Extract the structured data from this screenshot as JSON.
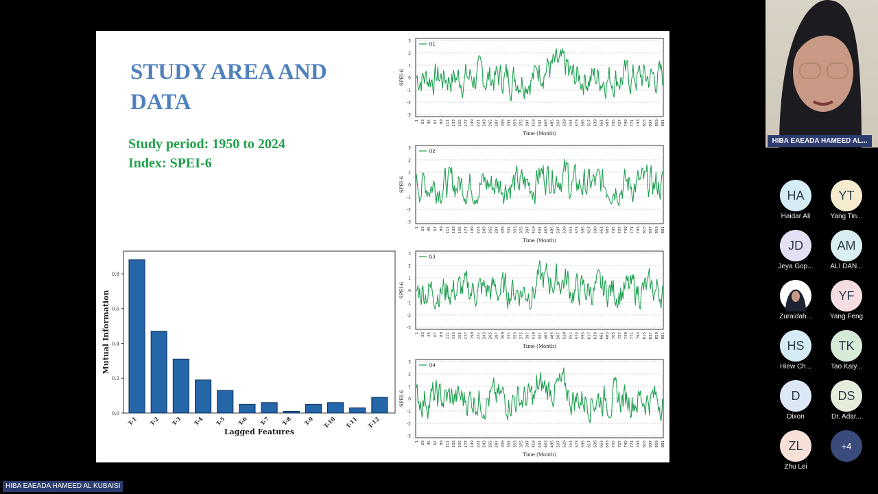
{
  "slide": {
    "title_line1": "STUDY AREA AND",
    "title_line2": "DATA",
    "period": "Study period: 1950 to 2024",
    "index": "Index: SPEI-6"
  },
  "mi_chart": {
    "type": "bar",
    "xlabel": "Lagged Features",
    "ylabel": "Mutual Information",
    "yticks": [
      "0.0",
      "0.2",
      "0.4",
      "0.6",
      "0.8"
    ],
    "ylim": [
      0,
      0.93
    ],
    "categories": [
      "T-1",
      "T-2",
      "T-3",
      "T-4",
      "T-5",
      "T-6",
      "T-7",
      "T-8",
      "T-9",
      "T-10",
      "T-11",
      "T-12"
    ],
    "values": [
      0.88,
      0.47,
      0.31,
      0.19,
      0.13,
      0.05,
      0.06,
      0.01,
      0.05,
      0.06,
      0.03,
      0.09
    ],
    "bar_color": "#2466a8"
  },
  "ts_common": {
    "ylabel": "SPEI-6",
    "xlabel": "Time (Month)",
    "yticks": [
      "3",
      "2",
      "1",
      "0",
      "-1",
      "-2",
      "-3"
    ],
    "xticks": [
      "1",
      "23",
      "45",
      "67",
      "89",
      "111",
      "133",
      "155",
      "177",
      "199",
      "221",
      "243",
      "265",
      "287",
      "309",
      "331",
      "353",
      "375",
      "397",
      "419",
      "441",
      "463",
      "485",
      "507",
      "529",
      "551",
      "573",
      "595",
      "617",
      "639",
      "661",
      "683",
      "705",
      "727",
      "749",
      "771",
      "793",
      "815",
      "837",
      "859",
      "881"
    ],
    "line_color": "#1e9e50"
  },
  "ts_charts": [
    {
      "legend": "G1"
    },
    {
      "legend": "G2"
    },
    {
      "legend": "G3"
    },
    {
      "legend": "G4"
    }
  ],
  "presenter": {
    "name": "HIBA EAEADA HAMEED AL..."
  },
  "bottom_label": "HIBA EAEADA HAMEED AL KUBAISI",
  "participants": [
    {
      "initials": "HA",
      "name": "Haidar Ali",
      "color": "#d6ecf5"
    },
    {
      "initials": "YT",
      "name": "Yang Tin...",
      "color": "#f5ecd0"
    },
    {
      "initials": "JD",
      "name": "Jeya Gop...",
      "color": "#e4e0f4"
    },
    {
      "initials": "AM",
      "name": "ALI DAN...",
      "color": "#d8eef0"
    },
    {
      "initials": "",
      "name": "Zuraidah...",
      "color": "#ffffff"
    },
    {
      "initials": "YF",
      "name": "Yang Feng",
      "color": "#f6dde2"
    },
    {
      "initials": "HS",
      "name": "Hiew Ch...",
      "color": "#d6ecf5"
    },
    {
      "initials": "TK",
      "name": "Tao Kaiy...",
      "color": "#d6ead8"
    },
    {
      "initials": "D",
      "name": "Dixon",
      "color": "#dce8f5"
    },
    {
      "initials": "DS",
      "name": "Dr. Adar...",
      "color": "#e6ecdc"
    },
    {
      "initials": "ZL",
      "name": "Zhu Lei",
      "color": "#f6e0d8"
    },
    {
      "initials": "+4",
      "name": "",
      "color": "#3a4a7a"
    }
  ]
}
